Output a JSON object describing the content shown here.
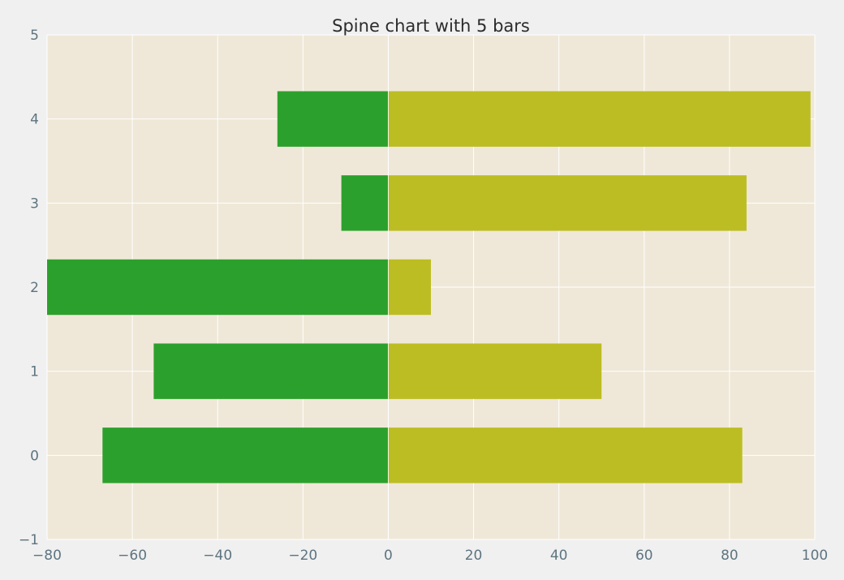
{
  "chart_data": {
    "type": "bar",
    "orientation": "horizontal",
    "stacked": "diverging",
    "title": "Spine chart with 5 bars",
    "xlabel": "",
    "ylabel": "",
    "categories": [
      "0",
      "1",
      "2",
      "3",
      "4"
    ],
    "series": [
      {
        "values": [
          -67,
          -55,
          -80,
          -11,
          -26
        ],
        "color": "#2ca02c"
      },
      {
        "values": [
          83,
          50,
          10,
          84,
          99
        ],
        "color": "#bcbd22"
      }
    ],
    "xlim": [
      -80,
      100
    ],
    "ylim": [
      -1,
      5
    ],
    "x_ticks": [
      "−80",
      "−60",
      "−40",
      "−20",
      "0",
      "20",
      "40",
      "60",
      "80",
      "100"
    ],
    "y_ticks": [
      "−1",
      "0",
      "1",
      "2",
      "3",
      "4",
      "5"
    ],
    "grid": true,
    "plot_background": "#efe8d8",
    "figure_background": "#f0f0f0"
  }
}
